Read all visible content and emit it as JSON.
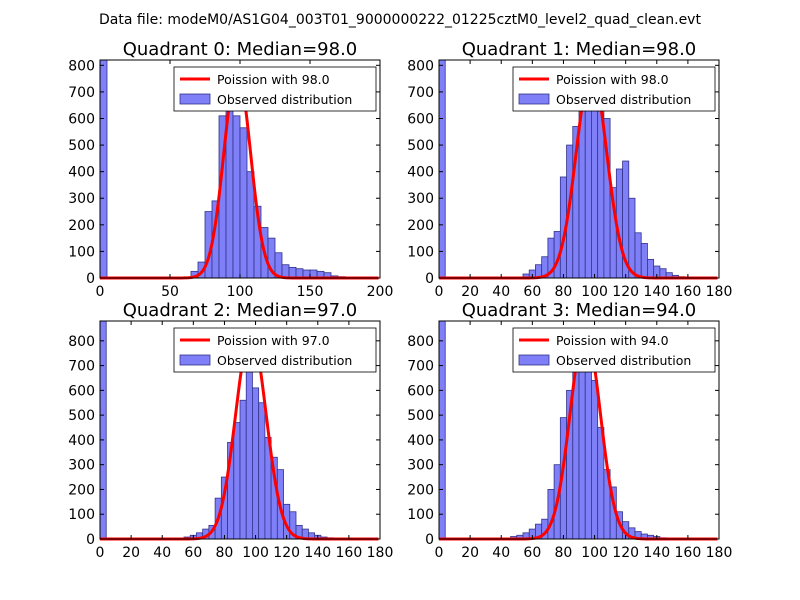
{
  "figure": {
    "suptitle": "Data file: modeM0/AS1G04_003T01_9000000222_01225cztM0_level2_quad_clean.evt"
  },
  "colors": {
    "bar_fill": "#7f7ff8",
    "bar_edge": "#33338a",
    "poisson_line": "#ff0000",
    "axis": "#000000"
  },
  "chart_data": [
    {
      "type": "bar",
      "title": "Quadrant 0: Median=98.0",
      "xlim": [
        0,
        200
      ],
      "ylim": [
        0,
        820
      ],
      "xticks": [
        0,
        50,
        100,
        150,
        200
      ],
      "yticks": [
        0,
        100,
        200,
        300,
        400,
        500,
        600,
        700,
        800
      ],
      "legend": {
        "placement": "top-right",
        "line_label": "Poission with 98.0",
        "bar_label": "Observed distribution"
      },
      "poisson_mean": 98.0,
      "poisson_peak": 780,
      "poisson_sigma": 9.5,
      "bin_width": 5,
      "bins": [
        {
          "x": 0,
          "h": 820
        },
        {
          "x": 65,
          "h": 25
        },
        {
          "x": 70,
          "h": 60
        },
        {
          "x": 75,
          "h": 250
        },
        {
          "x": 80,
          "h": 290
        },
        {
          "x": 85,
          "h": 610
        },
        {
          "x": 90,
          "h": 680
        },
        {
          "x": 95,
          "h": 610
        },
        {
          "x": 100,
          "h": 565
        },
        {
          "x": 105,
          "h": 400
        },
        {
          "x": 110,
          "h": 270
        },
        {
          "x": 115,
          "h": 190
        },
        {
          "x": 120,
          "h": 150
        },
        {
          "x": 125,
          "h": 95
        },
        {
          "x": 130,
          "h": 50
        },
        {
          "x": 135,
          "h": 40
        },
        {
          "x": 140,
          "h": 35
        },
        {
          "x": 145,
          "h": 30
        },
        {
          "x": 150,
          "h": 30
        },
        {
          "x": 155,
          "h": 25
        },
        {
          "x": 160,
          "h": 20
        },
        {
          "x": 165,
          "h": 8
        },
        {
          "x": 170,
          "h": 5
        }
      ]
    },
    {
      "type": "bar",
      "title": "Quadrant 1: Median=98.0",
      "xlim": [
        0,
        180
      ],
      "ylim": [
        0,
        820
      ],
      "xticks": [
        0,
        20,
        40,
        60,
        80,
        100,
        120,
        140,
        160,
        180
      ],
      "yticks": [
        0,
        100,
        200,
        300,
        400,
        500,
        600,
        700,
        800
      ],
      "legend": {
        "placement": "top-right",
        "line_label": "Poission with 98.0",
        "bar_label": "Observed distribution"
      },
      "poisson_mean": 98.0,
      "poisson_peak": 780,
      "poisson_sigma": 9.8,
      "bin_width": 4,
      "bins": [
        {
          "x": 0,
          "h": 820
        },
        {
          "x": 54,
          "h": 15
        },
        {
          "x": 58,
          "h": 30
        },
        {
          "x": 62,
          "h": 50
        },
        {
          "x": 66,
          "h": 80
        },
        {
          "x": 70,
          "h": 150
        },
        {
          "x": 74,
          "h": 175
        },
        {
          "x": 78,
          "h": 380
        },
        {
          "x": 82,
          "h": 500
        },
        {
          "x": 86,
          "h": 570
        },
        {
          "x": 90,
          "h": 670
        },
        {
          "x": 94,
          "h": 700
        },
        {
          "x": 98,
          "h": 740
        },
        {
          "x": 102,
          "h": 650
        },
        {
          "x": 106,
          "h": 600
        },
        {
          "x": 110,
          "h": 340
        },
        {
          "x": 114,
          "h": 410
        },
        {
          "x": 118,
          "h": 440
        },
        {
          "x": 122,
          "h": 300
        },
        {
          "x": 126,
          "h": 170
        },
        {
          "x": 130,
          "h": 130
        },
        {
          "x": 134,
          "h": 70
        },
        {
          "x": 138,
          "h": 45
        },
        {
          "x": 142,
          "h": 35
        },
        {
          "x": 146,
          "h": 20
        },
        {
          "x": 150,
          "h": 10
        },
        {
          "x": 154,
          "h": 5
        }
      ]
    },
    {
      "type": "bar",
      "title": "Quadrant 2: Median=97.0",
      "xlim": [
        0,
        180
      ],
      "ylim": [
        0,
        880
      ],
      "xticks": [
        0,
        20,
        40,
        60,
        80,
        100,
        120,
        140,
        160,
        180
      ],
      "yticks": [
        0,
        100,
        200,
        300,
        400,
        500,
        600,
        700,
        800
      ],
      "legend": {
        "placement": "top-right",
        "line_label": "Poission with 97.0",
        "bar_label": "Observed distribution"
      },
      "poisson_mean": 97.0,
      "poisson_peak": 830,
      "poisson_sigma": 9.8,
      "bin_width": 4,
      "bins": [
        {
          "x": 0,
          "h": 880
        },
        {
          "x": 54,
          "h": 8
        },
        {
          "x": 58,
          "h": 15
        },
        {
          "x": 62,
          "h": 25
        },
        {
          "x": 66,
          "h": 40
        },
        {
          "x": 70,
          "h": 55
        },
        {
          "x": 74,
          "h": 165
        },
        {
          "x": 78,
          "h": 250
        },
        {
          "x": 82,
          "h": 390
        },
        {
          "x": 86,
          "h": 470
        },
        {
          "x": 90,
          "h": 560
        },
        {
          "x": 94,
          "h": 830
        },
        {
          "x": 98,
          "h": 610
        },
        {
          "x": 102,
          "h": 550
        },
        {
          "x": 106,
          "h": 410
        },
        {
          "x": 110,
          "h": 330
        },
        {
          "x": 114,
          "h": 280
        },
        {
          "x": 118,
          "h": 140
        },
        {
          "x": 122,
          "h": 110
        },
        {
          "x": 126,
          "h": 55
        },
        {
          "x": 130,
          "h": 40
        },
        {
          "x": 134,
          "h": 25
        },
        {
          "x": 138,
          "h": 15
        },
        {
          "x": 142,
          "h": 8
        },
        {
          "x": 146,
          "h": 5
        }
      ]
    },
    {
      "type": "bar",
      "title": "Quadrant 3: Median=94.0",
      "xlim": [
        0,
        180
      ],
      "ylim": [
        0,
        880
      ],
      "xticks": [
        0,
        20,
        40,
        60,
        80,
        100,
        120,
        140,
        160,
        180
      ],
      "yticks": [
        0,
        100,
        200,
        300,
        400,
        500,
        600,
        700,
        800
      ],
      "legend": {
        "placement": "top-right",
        "line_label": "Poission with 94.0",
        "bar_label": "Observed distribution"
      },
      "poisson_mean": 94.0,
      "poisson_peak": 840,
      "poisson_sigma": 9.7,
      "bin_width": 4,
      "bins": [
        {
          "x": 0,
          "h": 880
        },
        {
          "x": 46,
          "h": 10
        },
        {
          "x": 50,
          "h": 15
        },
        {
          "x": 54,
          "h": 25
        },
        {
          "x": 58,
          "h": 40
        },
        {
          "x": 62,
          "h": 60
        },
        {
          "x": 66,
          "h": 80
        },
        {
          "x": 70,
          "h": 200
        },
        {
          "x": 74,
          "h": 300
        },
        {
          "x": 78,
          "h": 490
        },
        {
          "x": 82,
          "h": 600
        },
        {
          "x": 86,
          "h": 810
        },
        {
          "x": 90,
          "h": 850
        },
        {
          "x": 94,
          "h": 760
        },
        {
          "x": 98,
          "h": 640
        },
        {
          "x": 102,
          "h": 450
        },
        {
          "x": 106,
          "h": 280
        },
        {
          "x": 110,
          "h": 210
        },
        {
          "x": 114,
          "h": 110
        },
        {
          "x": 118,
          "h": 70
        },
        {
          "x": 122,
          "h": 45
        },
        {
          "x": 126,
          "h": 30
        },
        {
          "x": 130,
          "h": 20
        },
        {
          "x": 134,
          "h": 15
        },
        {
          "x": 138,
          "h": 10
        },
        {
          "x": 142,
          "h": 5
        }
      ]
    }
  ]
}
